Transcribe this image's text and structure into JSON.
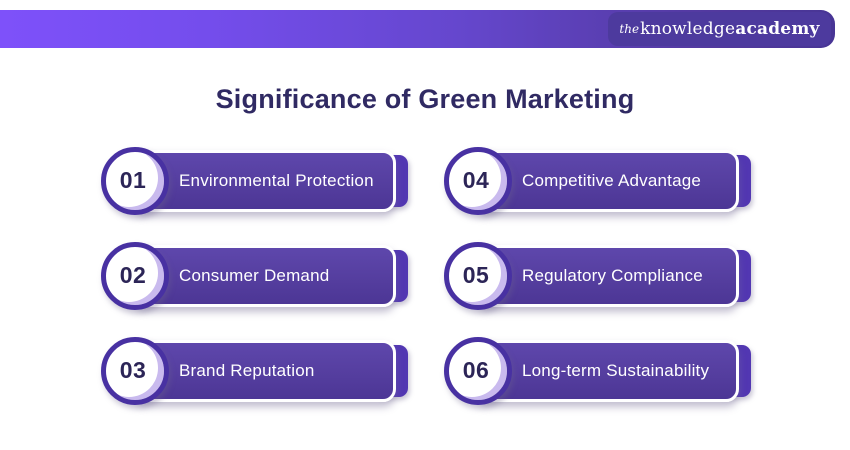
{
  "header": {
    "logo": {
      "prefix": "the",
      "word1": "knowledge",
      "word2": "academy"
    },
    "bar_gradient_start": "#7e51fa",
    "bar_gradient_end": "#483595",
    "logo_box_color": "#4d3a9e"
  },
  "title": "Significance of Green Marketing",
  "items": [
    {
      "number": "01",
      "label": "Environmental Protection"
    },
    {
      "number": "02",
      "label": "Consumer Demand"
    },
    {
      "number": "03",
      "label": "Brand Reputation"
    },
    {
      "number": "04",
      "label": "Competitive Advantage"
    },
    {
      "number": "05",
      "label": "Regulatory Compliance"
    },
    {
      "number": "06",
      "label": "Long-term Sustainability"
    }
  ],
  "colors": {
    "title_text": "#302a63",
    "banner_fill": "#553e9f",
    "banner_tab": "#5237b2",
    "circle_ring": "#4831a2",
    "circle_crescent": "#c9baee",
    "number_text": "#2c2557",
    "label_text": "#ffffff",
    "background": "#ffffff"
  }
}
